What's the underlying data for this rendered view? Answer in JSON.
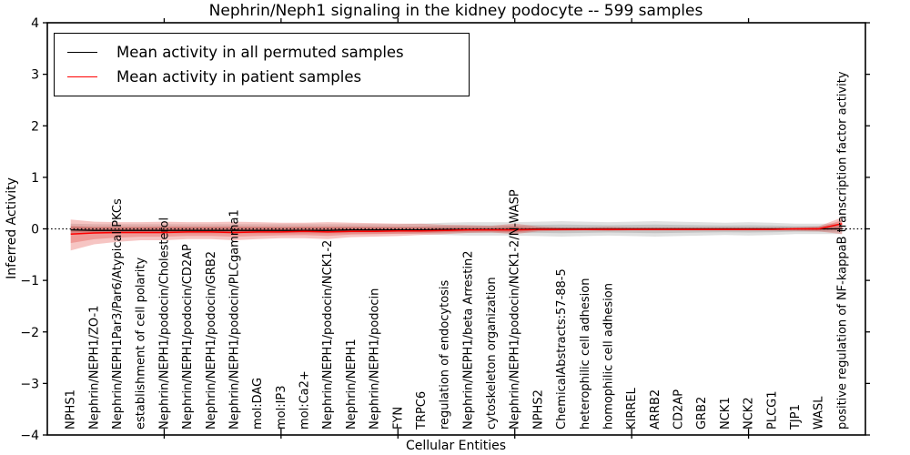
{
  "title": "Nephrin/Neph1 signaling in the kidney podocyte -- 599 samples",
  "axes": {
    "x_label": "Cellular Entities",
    "y_label": "Inferred Activity",
    "y_ticks": [
      4,
      3,
      2,
      1,
      0,
      -1,
      -2,
      -3,
      -4
    ],
    "x_major_tick_positions": [
      5,
      10,
      15,
      20,
      25,
      30
    ]
  },
  "chart_data": {
    "type": "line",
    "title": "Nephrin/Neph1 signaling in the kidney podocyte -- 599 samples",
    "xlabel": "Cellular Entities",
    "ylabel": "Inferred Activity",
    "ylim": [
      -4,
      4
    ],
    "xlim": [
      0,
      35
    ],
    "grid": false,
    "legend_position": "upper left",
    "zero_reference_line": 0,
    "categories": [
      "NPHS1",
      "Nephrin/NEPH1/ZO-1",
      "Nephrin/NEPH1Par3/Par6/Atypical PKCs",
      "establishment of cell polarity",
      "Nephrin/NEPH1/podocin/Cholesterol",
      "Nephrin/NEPH1/podocin/CD2AP",
      "Nephrin/NEPH1/podocin/GRB2",
      "Nephrin/NEPH1/podocin/PLCgamma1",
      "mol:DAG",
      "mol:IP3",
      "mol:Ca2+",
      "Nephrin/NEPH1/podocin/NCK1-2",
      "Nephrin/NEPH1",
      "Nephrin/NEPH1/podocin",
      "FYN",
      "TRPC6",
      "regulation of endocytosis",
      "Nephrin/NEPH1/beta Arrestin2",
      "cytoskeleton organization",
      "Nephrin/NEPH1/podocin/NCK1-2/N-WASP",
      "NPHS2",
      "ChemicalAbstracts:57-88-5",
      "heterophilic cell adhesion",
      "homophilic cell adhesion",
      "KIRREL",
      "ARRB2",
      "CD2AP",
      "GRB2",
      "NCK1",
      "NCK2",
      "PLCG1",
      "TJP1",
      "WASL",
      "positive regulation of NF-kappaB transcription factor activity"
    ],
    "series": [
      {
        "name": "Mean activity in all permuted samples",
        "color": "#000000",
        "values": [
          -0.02,
          -0.03,
          -0.03,
          -0.03,
          -0.03,
          -0.03,
          -0.03,
          -0.03,
          -0.03,
          -0.03,
          -0.03,
          -0.03,
          -0.02,
          -0.02,
          -0.02,
          -0.02,
          -0.01,
          -0.01,
          -0.01,
          -0.01,
          0,
          0,
          0,
          0,
          0,
          0,
          0,
          0,
          0,
          0,
          0,
          0,
          0,
          0
        ]
      },
      {
        "name": "Mean activity in patient samples",
        "color": "#ff0000",
        "values": [
          -0.1,
          -0.08,
          -0.07,
          -0.07,
          -0.07,
          -0.06,
          -0.06,
          -0.07,
          -0.06,
          -0.06,
          -0.05,
          -0.06,
          -0.05,
          -0.05,
          -0.04,
          -0.04,
          -0.03,
          -0.02,
          -0.02,
          -0.02,
          -0.01,
          -0.01,
          -0.01,
          -0.01,
          -0.01,
          -0.01,
          -0.01,
          -0.01,
          -0.01,
          -0.01,
          -0.01,
          0,
          0,
          0.1
        ]
      }
    ],
    "bands": [
      {
        "name": "permuted samples spread",
        "color": "rgba(0,0,0,0.12)",
        "upper": [
          0.1,
          0.09,
          0.09,
          0.09,
          0.09,
          0.09,
          0.09,
          0.09,
          0.09,
          0.09,
          0.09,
          0.09,
          0.09,
          0.09,
          0.09,
          0.1,
          0.12,
          0.13,
          0.13,
          0.13,
          0.14,
          0.15,
          0.14,
          0.13,
          0.14,
          0.15,
          0.14,
          0.13,
          0.12,
          0.13,
          0.12,
          0.1,
          0.1,
          0.1
        ],
        "lower": [
          -0.1,
          -0.09,
          -0.09,
          -0.09,
          -0.09,
          -0.09,
          -0.09,
          -0.09,
          -0.09,
          -0.09,
          -0.09,
          -0.09,
          -0.09,
          -0.09,
          -0.09,
          -0.1,
          -0.12,
          -0.13,
          -0.13,
          -0.13,
          -0.14,
          -0.15,
          -0.14,
          -0.13,
          -0.14,
          -0.15,
          -0.14,
          -0.13,
          -0.12,
          -0.13,
          -0.12,
          -0.1,
          -0.1,
          -0.1
        ]
      },
      {
        "name": "patient samples spread",
        "color": "rgba(222,45,38,0.28)",
        "upper": [
          0.18,
          0.14,
          0.13,
          0.13,
          0.14,
          0.13,
          0.13,
          0.14,
          0.13,
          0.12,
          0.12,
          0.13,
          0.12,
          0.11,
          0.1,
          0.1,
          0.08,
          0.07,
          0.06,
          0.1,
          0.05,
          0.03,
          0.03,
          0.04,
          0.03,
          0.03,
          0.03,
          0.03,
          0.03,
          0.03,
          0.03,
          0.03,
          0.05,
          0.22
        ],
        "lower": [
          -0.42,
          -0.3,
          -0.25,
          -0.22,
          -0.22,
          -0.2,
          -0.2,
          -0.22,
          -0.2,
          -0.18,
          -0.18,
          -0.2,
          -0.16,
          -0.15,
          -0.14,
          -0.12,
          -0.1,
          -0.08,
          -0.07,
          -0.1,
          -0.05,
          -0.04,
          -0.03,
          -0.04,
          -0.03,
          -0.03,
          -0.03,
          -0.03,
          -0.03,
          -0.03,
          -0.03,
          -0.04,
          -0.05,
          -0.1
        ]
      }
    ]
  }
}
